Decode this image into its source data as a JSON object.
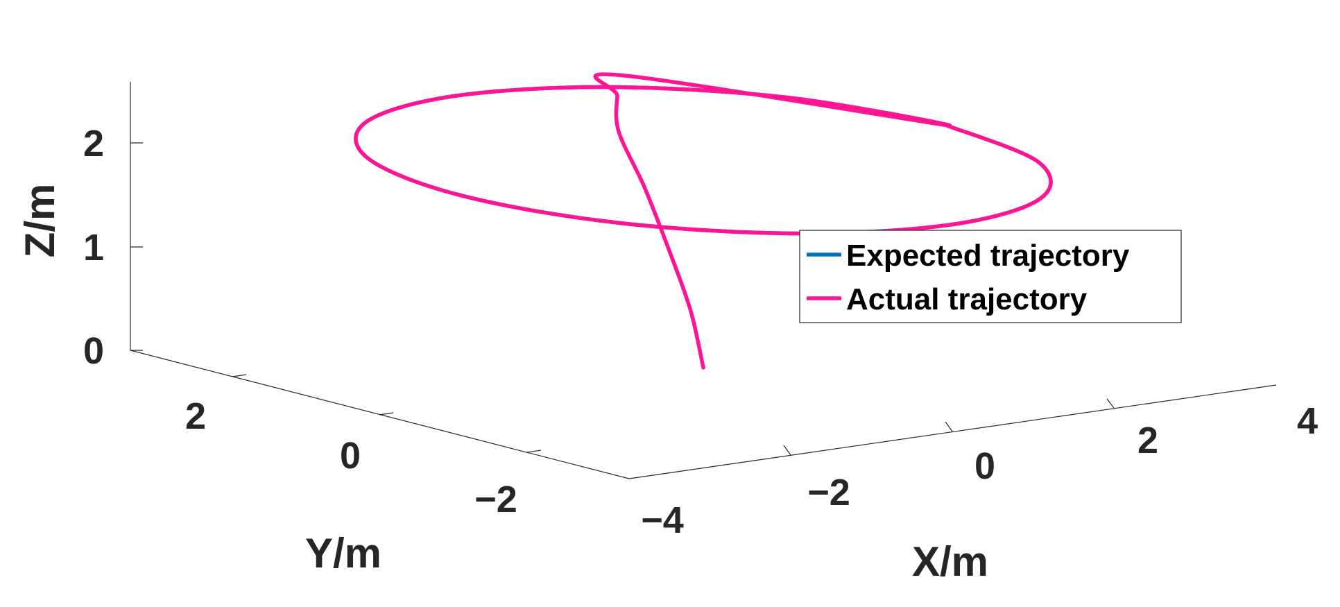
{
  "chart_data": {
    "type": "line3d",
    "title": "",
    "xlabel": "X/m",
    "ylabel": "Y/m",
    "zlabel": "Z/m",
    "xlim": [
      -4,
      4
    ],
    "ylim": [
      -3,
      3
    ],
    "zlim": [
      0,
      2.5
    ],
    "x_ticks": [
      "−4",
      "−2",
      "0",
      "2",
      "4"
    ],
    "y_ticks": [
      "−2",
      "0",
      "2"
    ],
    "z_ticks": [
      "0",
      "1",
      "2"
    ],
    "legend_position": "right",
    "series": [
      {
        "name": "Expected trajectory",
        "color": "#0072BD",
        "points_xyz": [
          [
            3.0,
            0.0,
            2.0
          ],
          [
            2.6,
            1.5,
            2.0
          ],
          [
            1.5,
            2.6,
            2.0
          ],
          [
            0.0,
            3.0,
            2.0
          ],
          [
            -1.5,
            2.6,
            2.0
          ],
          [
            -2.6,
            1.5,
            2.0
          ],
          [
            -3.0,
            0.0,
            2.0
          ],
          [
            -2.6,
            -1.5,
            2.0
          ],
          [
            -1.5,
            -2.6,
            2.0
          ],
          [
            0.0,
            -3.0,
            2.0
          ],
          [
            1.5,
            -2.6,
            2.0
          ],
          [
            2.6,
            -1.5,
            2.0
          ],
          [
            3.0,
            0.0,
            2.0
          ]
        ]
      },
      {
        "name": "Actual trajectory",
        "color": "#FF1493",
        "points_xyz": [
          [
            0.0,
            0.0,
            0.0
          ],
          [
            0.05,
            0.2,
            0.5
          ],
          [
            0.1,
            0.5,
            1.0
          ],
          [
            0.3,
            1.0,
            1.5
          ],
          [
            0.7,
            1.7,
            1.85
          ],
          [
            1.3,
            2.3,
            2.0
          ],
          [
            1.8,
            2.75,
            2.05
          ],
          [
            3.0,
            0.0,
            2.0
          ],
          [
            2.6,
            1.5,
            2.0
          ],
          [
            1.5,
            2.6,
            2.0
          ],
          [
            0.0,
            3.0,
            2.0
          ],
          [
            -1.5,
            2.6,
            2.0
          ],
          [
            -2.6,
            1.5,
            2.0
          ],
          [
            -3.0,
            0.0,
            2.0
          ],
          [
            -2.6,
            -1.5,
            2.0
          ],
          [
            -1.5,
            -2.6,
            2.0
          ],
          [
            0.0,
            -3.0,
            2.0
          ],
          [
            1.5,
            -2.6,
            2.0
          ],
          [
            2.6,
            -1.5,
            2.0
          ],
          [
            3.0,
            0.0,
            2.0
          ]
        ]
      }
    ]
  }
}
